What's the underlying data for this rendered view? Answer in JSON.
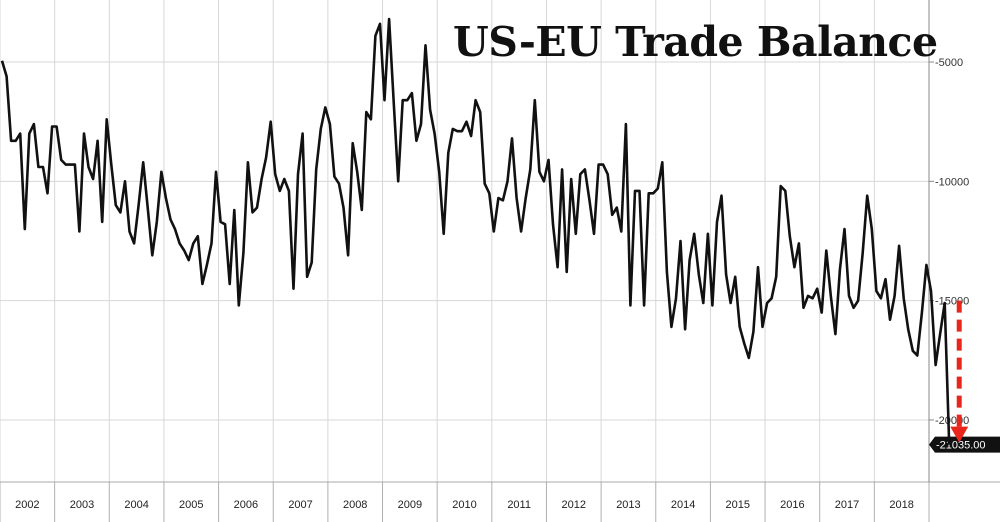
{
  "chart_data": {
    "type": "line",
    "title": "US-EU Trade Balance",
    "xlabel": "",
    "ylabel": "",
    "x_range": [
      2002,
      2019
    ],
    "ylim": [
      -22600,
      -2400
    ],
    "grid": true,
    "y_ticks": [
      {
        "value": -5000,
        "label": "-5000"
      },
      {
        "value": -10000,
        "label": "-10000"
      },
      {
        "value": -15000,
        "label": "-15000"
      },
      {
        "value": -20000,
        "label": "-20000"
      }
    ],
    "x_ticks": [
      "2002",
      "2003",
      "2004",
      "2005",
      "2006",
      "2007",
      "2008",
      "2009",
      "2010",
      "2011",
      "2012",
      "2013",
      "2014",
      "2015",
      "2016",
      "2017",
      "2018"
    ],
    "last_value_label": "-21035.00",
    "annotation": {
      "type": "dashed-arrow",
      "color": "#e8261c",
      "from": -15000,
      "to": -21035
    },
    "series": [
      {
        "color": "#111111",
        "values": [
          -4950,
          -5600,
          -8300,
          -8300,
          -8000,
          -12000,
          -8000,
          -7600,
          -9400,
          -9400,
          -10500,
          -7700,
          -7700,
          -9100,
          -9300,
          -9300,
          -9300,
          -12100,
          -8000,
          -9400,
          -9900,
          -8300,
          -11700,
          -7400,
          -9300,
          -11000,
          -11300,
          -10000,
          -12100,
          -12600,
          -11000,
          -9200,
          -11100,
          -13100,
          -11700,
          -9600,
          -10700,
          -11600,
          -12000,
          -12600,
          -12900,
          -13300,
          -12600,
          -12300,
          -14300,
          -13500,
          -12600,
          -9600,
          -11700,
          -11800,
          -14300,
          -11200,
          -15200,
          -13000,
          -9200,
          -11300,
          -11100,
          -9900,
          -9000,
          -7500,
          -9700,
          -10400,
          -9900,
          -10400,
          -14500,
          -9700,
          -8000,
          -14000,
          -13400,
          -9500,
          -7800,
          -6900,
          -7600,
          -9800,
          -10100,
          -11100,
          -13100,
          -8400,
          -9600,
          -11200,
          -7100,
          -7400,
          -3900,
          -3400,
          -6600,
          -3200,
          -6600,
          -10000,
          -6600,
          -6600,
          -6300,
          -8300,
          -7600,
          -4300,
          -7000,
          -8000,
          -9600,
          -12200,
          -8800,
          -7800,
          -7900,
          -7900,
          -7500,
          -8100,
          -6600,
          -7100,
          -10100,
          -10500,
          -12100,
          -10700,
          -10800,
          -10000,
          -8200,
          -10700,
          -12100,
          -10700,
          -9500,
          -6600,
          -9600,
          -10000,
          -9100,
          -11800,
          -13600,
          -9500,
          -13800,
          -9900,
          -12200,
          -9700,
          -9500,
          -10800,
          -12200,
          -9300,
          -9300,
          -9700,
          -11400,
          -11100,
          -12100,
          -7600,
          -15200,
          -10400,
          -10400,
          -15200,
          -10500,
          -10500,
          -10300,
          -9200,
          -13800,
          -16100,
          -14900,
          -12500,
          -16200,
          -13300,
          -12200,
          -13900,
          -15100,
          -12200,
          -15200,
          -11700,
          -10600,
          -13900,
          -15100,
          -14000,
          -16100,
          -16800,
          -17400,
          -16300,
          -13600,
          -16100,
          -15100,
          -14900,
          -14000,
          -10200,
          -10400,
          -12300,
          -13600,
          -12600,
          -15300,
          -14800,
          -14900,
          -14500,
          -15500,
          -12900,
          -14800,
          -16400,
          -13700,
          -12000,
          -14800,
          -15300,
          -15000,
          -13000,
          -10600,
          -12000,
          -14600,
          -14900,
          -14100,
          -15800,
          -14800,
          -12700,
          -14900,
          -16200,
          -17100,
          -17300,
          -15500,
          -13500,
          -14600,
          -17700,
          -16400,
          -15100,
          -21035
        ]
      }
    ]
  }
}
